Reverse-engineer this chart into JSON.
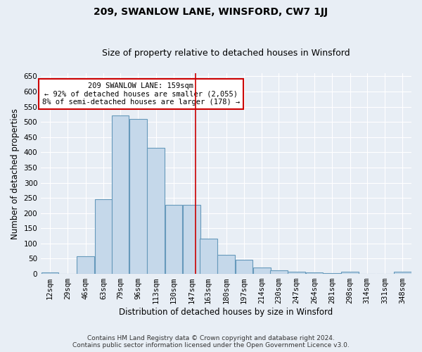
{
  "title": "209, SWANLOW LANE, WINSFORD, CW7 1JJ",
  "subtitle": "Size of property relative to detached houses in Winsford",
  "xlabel": "Distribution of detached houses by size in Winsford",
  "ylabel": "Number of detached properties",
  "bin_labels": [
    "12sqm",
    "29sqm",
    "46sqm",
    "63sqm",
    "79sqm",
    "96sqm",
    "113sqm",
    "130sqm",
    "147sqm",
    "163sqm",
    "180sqm",
    "197sqm",
    "214sqm",
    "230sqm",
    "247sqm",
    "264sqm",
    "281sqm",
    "298sqm",
    "314sqm",
    "331sqm",
    "348sqm"
  ],
  "bar_values": [
    5,
    0,
    57,
    245,
    520,
    510,
    415,
    228,
    228,
    117,
    62,
    47,
    20,
    12,
    8,
    5,
    2,
    7,
    0,
    0,
    7
  ],
  "bar_left_edges": [
    12,
    29,
    46,
    63,
    79,
    96,
    113,
    130,
    147,
    163,
    180,
    197,
    214,
    230,
    247,
    264,
    281,
    298,
    314,
    331,
    348
  ],
  "bar_color": "#c5d8ea",
  "bar_edge_color": "#6699bb",
  "vline_x": 159,
  "vline_color": "#cc0000",
  "annotation_text": "209 SWANLOW LANE: 159sqm\n← 92% of detached houses are smaller (2,055)\n8% of semi-detached houses are larger (178) →",
  "annotation_box_color": "white",
  "annotation_box_edge": "#cc0000",
  "ylim": [
    0,
    660
  ],
  "yticks": [
    0,
    50,
    100,
    150,
    200,
    250,
    300,
    350,
    400,
    450,
    500,
    550,
    600,
    650
  ],
  "footer_line1": "Contains HM Land Registry data © Crown copyright and database right 2024.",
  "footer_line2": "Contains public sector information licensed under the Open Government Licence v3.0.",
  "background_color": "#e8eef5",
  "title_fontsize": 10,
  "subtitle_fontsize": 9,
  "axis_label_fontsize": 8.5,
  "tick_fontsize": 7.5,
  "footer_fontsize": 6.5,
  "bin_width": 17
}
